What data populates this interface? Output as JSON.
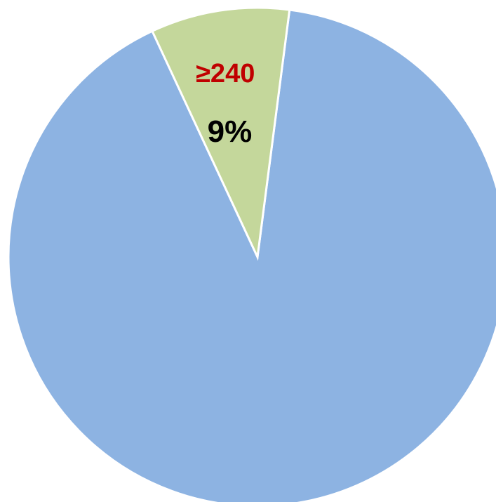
{
  "chart_data": {
    "type": "pie",
    "title": "",
    "slices": [
      {
        "label": "",
        "value": 91,
        "color": "#8db3e2"
      },
      {
        "label": "≥240",
        "value": 9,
        "display": "9%",
        "color": "#c4d79b",
        "label_color": "#c00000",
        "value_color": "#000000"
      }
    ],
    "start_angle_deg": -25,
    "direction": "counterclockwise"
  }
}
